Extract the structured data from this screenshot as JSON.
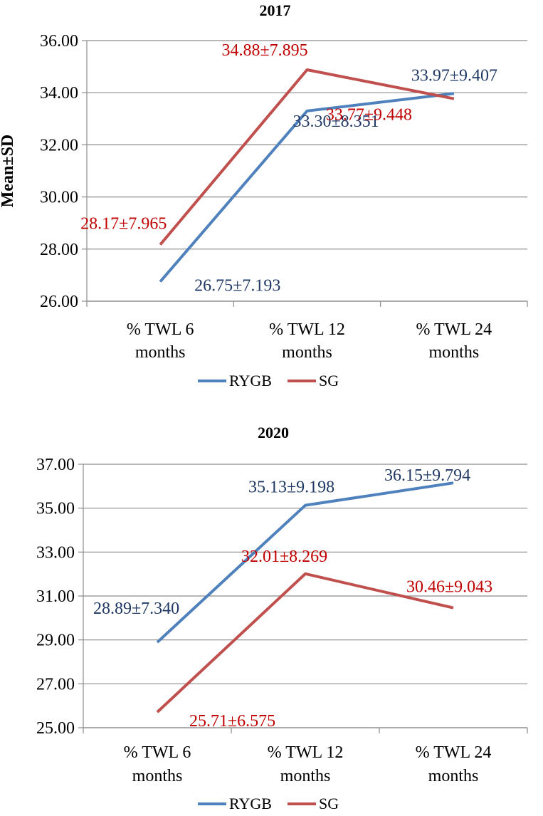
{
  "chart_data": [
    {
      "type": "line",
      "title": "2017",
      "ylabel": "Mean±SD",
      "xlabel": "",
      "categories": [
        [
          "% TWL 6",
          "months"
        ],
        [
          "% TWL 12",
          "months"
        ],
        [
          "% TWL 24",
          "months"
        ]
      ],
      "ylim": [
        26,
        36
      ],
      "ystep": 2,
      "yticks": [
        "26.00",
        "28.00",
        "30.00",
        "32.00",
        "34.00",
        "36.00"
      ],
      "legend_position": "bottom",
      "series": [
        {
          "name": "RYGB",
          "color": "#4f81bd",
          "label_color": "#1f3864",
          "values": [
            26.75,
            33.3,
            33.97
          ],
          "labels": [
            "26.75±7.193",
            "33.30±8.351",
            "33.97±9.407"
          ]
        },
        {
          "name": "SG",
          "color": "#c0504d",
          "label_color": "#c00000",
          "values": [
            28.17,
            34.88,
            33.77
          ],
          "labels": [
            "28.17±7.965",
            "34.88±7.895",
            "33.77±9.448"
          ]
        }
      ]
    },
    {
      "type": "line",
      "title": "2020",
      "ylabel": "",
      "xlabel": "",
      "categories": [
        [
          "% TWL 6",
          "months"
        ],
        [
          "% TWL 12",
          "months"
        ],
        [
          "% TWL 24",
          "months"
        ]
      ],
      "ylim": [
        25,
        37
      ],
      "ystep": 2,
      "yticks": [
        "25.00",
        "27.00",
        "29.00",
        "31.00",
        "33.00",
        "35.00",
        "37.00"
      ],
      "legend_position": "bottom",
      "series": [
        {
          "name": "RYGB",
          "color": "#4f81bd",
          "label_color": "#1f3864",
          "values": [
            28.89,
            35.13,
            36.15
          ],
          "labels": [
            "28.89±7.340",
            "35.13±9.198",
            "36.15±9.794"
          ]
        },
        {
          "name": "SG",
          "color": "#c0504d",
          "label_color": "#c00000",
          "values": [
            25.71,
            32.01,
            30.46
          ],
          "labels": [
            "25.71±6.575",
            "32.01±8.269",
            "30.46±9.043"
          ]
        }
      ]
    }
  ]
}
